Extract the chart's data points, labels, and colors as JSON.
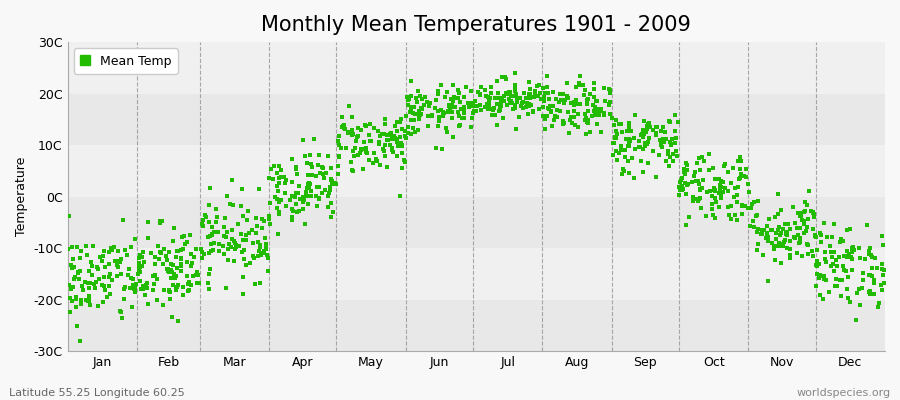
{
  "title": "Monthly Mean Temperatures 1901 - 2009",
  "ylabel": "Temperature",
  "ylim": [
    -30,
    30
  ],
  "yticks": [
    -30,
    -20,
    -10,
    0,
    10,
    20,
    30
  ],
  "ytick_labels": [
    "-30C",
    "-20C",
    "-10C",
    "0C",
    "10C",
    "20C",
    "30C"
  ],
  "months": [
    "Jan",
    "Feb",
    "Mar",
    "Apr",
    "May",
    "Jun",
    "Jul",
    "Aug",
    "Sep",
    "Oct",
    "Nov",
    "Dec"
  ],
  "month_days": [
    31,
    28,
    31,
    30,
    31,
    30,
    31,
    31,
    30,
    31,
    30,
    31
  ],
  "month_means": [
    -16.0,
    -14.5,
    -8.0,
    2.0,
    10.5,
    16.5,
    19.0,
    17.0,
    10.5,
    2.0,
    -6.5,
    -13.5
  ],
  "month_stds": [
    4.5,
    4.5,
    4.0,
    3.5,
    3.0,
    2.5,
    2.0,
    2.5,
    3.0,
    3.5,
    3.5,
    4.0
  ],
  "n_years": 109,
  "random_seed": 42,
  "dot_color": "#22bb00",
  "dot_size": 5,
  "dot_marker": "s",
  "fig_bg_color": "#f8f8f8",
  "plot_bg_color": "#f8f8f8",
  "band_colors": [
    "#f0f0f0",
    "#e8e8e8"
  ],
  "grid_color": "#888888",
  "legend_label": "Mean Temp",
  "bottom_left_text": "Latitude 55.25 Longitude 60.25",
  "bottom_right_text": "worldspecies.org",
  "title_fontsize": 15,
  "axis_label_fontsize": 9,
  "tick_fontsize": 9,
  "annotation_fontsize": 8
}
